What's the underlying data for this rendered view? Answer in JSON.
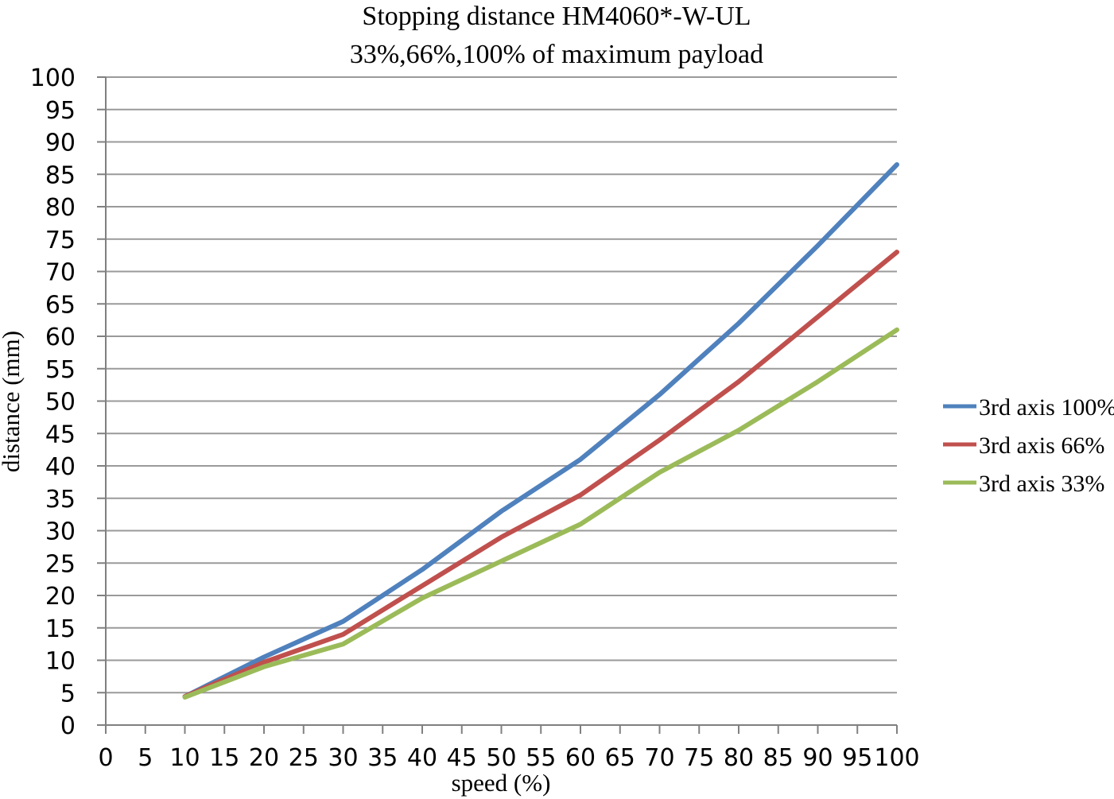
{
  "page": {
    "background": "#ffffff"
  },
  "chart_data": {
    "type": "line",
    "title": "Stopping distance HM4060*-W-UL",
    "subtitle": "33%,66%,100% of maximum payload",
    "xlabel": "speed (%)",
    "ylabel": "distance (mm)",
    "xlim": [
      0,
      100
    ],
    "ylim": [
      0,
      100
    ],
    "x_ticks": [
      0,
      5,
      10,
      15,
      20,
      25,
      30,
      35,
      40,
      45,
      50,
      55,
      60,
      65,
      70,
      75,
      80,
      85,
      90,
      95,
      100
    ],
    "y_ticks": [
      0,
      5,
      10,
      15,
      20,
      25,
      30,
      35,
      40,
      45,
      50,
      55,
      60,
      65,
      70,
      75,
      80,
      85,
      90,
      95,
      100
    ],
    "grid": "horizontal-only",
    "legend_position": "right",
    "x": [
      10,
      20,
      30,
      40,
      50,
      60,
      70,
      80,
      90,
      100
    ],
    "series": [
      {
        "name": "3rd axis 100%",
        "color": "#4F81BD",
        "values": [
          4.4,
          10.5,
          16.0,
          24.0,
          33.0,
          41.0,
          51.0,
          62.0,
          74.0,
          86.5
        ]
      },
      {
        "name": "3rd axis 66%",
        "color": "#C0504D",
        "values": [
          4.4,
          9.7,
          14.0,
          21.5,
          29.0,
          35.5,
          44.0,
          53.0,
          63.0,
          73.0
        ]
      },
      {
        "name": "3rd axis 33%",
        "color": "#9BBB59",
        "values": [
          4.3,
          9.0,
          12.5,
          19.6,
          25.3,
          31.0,
          39.0,
          45.5,
          53.0,
          61.0
        ]
      }
    ],
    "colors": {
      "gridline": "#9a9a9a",
      "axis": "#808080",
      "text": "#000000"
    }
  }
}
